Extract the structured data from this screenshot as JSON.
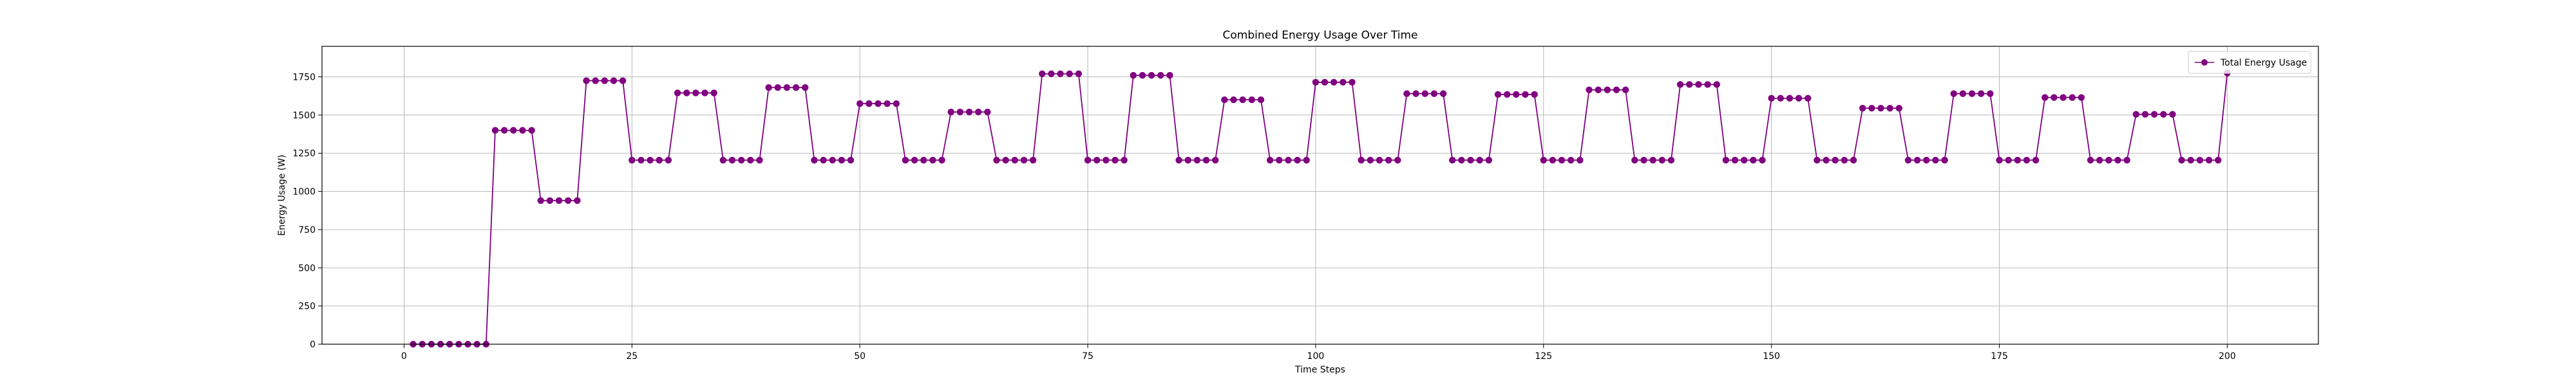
{
  "chart_data": {
    "type": "line",
    "title": "Combined Energy Usage Over Time",
    "xlabel": "Time Steps",
    "ylabel": "Energy Usage (W)",
    "xlim": [
      -9,
      210
    ],
    "ylim": [
      0,
      1950
    ],
    "xticks": [
      0,
      25,
      50,
      75,
      100,
      125,
      150,
      175,
      200
    ],
    "yticks": [
      0,
      250,
      500,
      750,
      1000,
      1250,
      1500,
      1750
    ],
    "grid": true,
    "legend": "top-right",
    "series": [
      {
        "name": "Total Energy Usage",
        "color": "#800080",
        "marker": "circle",
        "x": [
          1,
          2,
          3,
          4,
          5,
          6,
          7,
          8,
          9,
          10,
          11,
          12,
          13,
          14,
          15,
          16,
          17,
          18,
          19,
          20,
          21,
          22,
          23,
          24,
          25,
          26,
          27,
          28,
          29,
          30,
          31,
          32,
          33,
          34,
          35,
          36,
          37,
          38,
          39,
          40,
          41,
          42,
          43,
          44,
          45,
          46,
          47,
          48,
          49,
          50,
          51,
          52,
          53,
          54,
          55,
          56,
          57,
          58,
          59,
          60,
          61,
          62,
          63,
          64,
          65,
          66,
          67,
          68,
          69,
          70,
          71,
          72,
          73,
          74,
          75,
          76,
          77,
          78,
          79,
          80,
          81,
          82,
          83,
          84,
          85,
          86,
          87,
          88,
          89,
          90,
          91,
          92,
          93,
          94,
          95,
          96,
          97,
          98,
          99,
          100,
          101,
          102,
          103,
          104,
          105,
          106,
          107,
          108,
          109,
          110,
          111,
          112,
          113,
          114,
          115,
          116,
          117,
          118,
          119,
          120,
          121,
          122,
          123,
          124,
          125,
          126,
          127,
          128,
          129,
          130,
          131,
          132,
          133,
          134,
          135,
          136,
          137,
          138,
          139,
          140,
          141,
          142,
          143,
          144,
          145,
          146,
          147,
          148,
          149,
          150,
          151,
          152,
          153,
          154,
          155,
          156,
          157,
          158,
          159,
          160,
          161,
          162,
          163,
          164,
          165,
          166,
          167,
          168,
          169,
          170,
          171,
          172,
          173,
          174,
          175,
          176,
          177,
          178,
          179,
          180,
          181,
          182,
          183,
          184,
          185,
          186,
          187,
          188,
          189,
          190,
          191,
          192,
          193,
          194,
          195,
          196,
          197,
          198,
          199,
          200
        ],
        "y": [
          0,
          0,
          0,
          0,
          0,
          0,
          0,
          0,
          0,
          1400,
          1400,
          1400,
          1400,
          1400,
          940,
          940,
          940,
          940,
          940,
          1725,
          1725,
          1725,
          1725,
          1725,
          1205,
          1205,
          1205,
          1205,
          1205,
          1645,
          1645,
          1645,
          1645,
          1645,
          1205,
          1205,
          1205,
          1205,
          1205,
          1680,
          1680,
          1680,
          1680,
          1680,
          1205,
          1205,
          1205,
          1205,
          1205,
          1575,
          1575,
          1575,
          1575,
          1575,
          1205,
          1205,
          1205,
          1205,
          1205,
          1520,
          1520,
          1520,
          1520,
          1520,
          1205,
          1205,
          1205,
          1205,
          1205,
          1770,
          1770,
          1770,
          1770,
          1770,
          1205,
          1205,
          1205,
          1205,
          1205,
          1760,
          1760,
          1760,
          1760,
          1760,
          1205,
          1205,
          1205,
          1205,
          1205,
          1600,
          1600,
          1600,
          1600,
          1600,
          1205,
          1205,
          1205,
          1205,
          1205,
          1715,
          1715,
          1715,
          1715,
          1715,
          1205,
          1205,
          1205,
          1205,
          1205,
          1640,
          1640,
          1640,
          1640,
          1640,
          1205,
          1205,
          1205,
          1205,
          1205,
          1635,
          1635,
          1635,
          1635,
          1635,
          1205,
          1205,
          1205,
          1205,
          1205,
          1665,
          1665,
          1665,
          1665,
          1665,
          1205,
          1205,
          1205,
          1205,
          1205,
          1700,
          1700,
          1700,
          1700,
          1700,
          1205,
          1205,
          1205,
          1205,
          1205,
          1610,
          1610,
          1610,
          1610,
          1610,
          1205,
          1205,
          1205,
          1205,
          1205,
          1545,
          1545,
          1545,
          1545,
          1545,
          1205,
          1205,
          1205,
          1205,
          1205,
          1640,
          1640,
          1640,
          1640,
          1640,
          1205,
          1205,
          1205,
          1205,
          1205,
          1615,
          1615,
          1615,
          1615,
          1615,
          1205,
          1205,
          1205,
          1205,
          1205,
          1505,
          1505,
          1505,
          1505,
          1505,
          1205,
          1205,
          1205,
          1205,
          1205,
          1775
        ]
      }
    ]
  }
}
